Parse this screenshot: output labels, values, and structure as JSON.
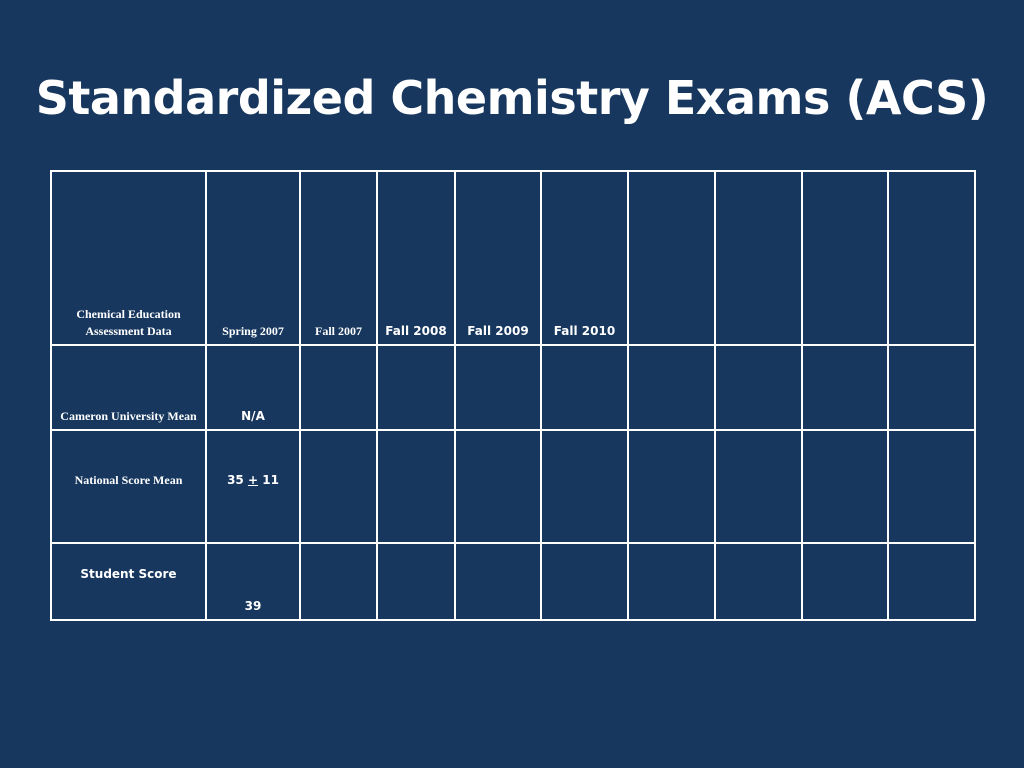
{
  "slide": {
    "title": "Standardized Chemistry Exams (ACS)"
  },
  "table": {
    "header": {
      "label": "Chemical Education Assessment Data",
      "columns": [
        "Spring 2007",
        "Fall 2007",
        "Fall 2008",
        "Fall 2009",
        "Fall 2010",
        "",
        "",
        "",
        ""
      ]
    },
    "rows": [
      {
        "label": "Cameron University Mean",
        "values": [
          "N/A",
          "",
          "",
          "",
          "",
          "",
          "",
          "",
          ""
        ]
      },
      {
        "label": "National Score Mean",
        "values": [
          "35 ± 11",
          "",
          "",
          "",
          "",
          "",
          "",
          "",
          ""
        ],
        "national_mean": "35",
        "pm": "+",
        "sd": "11"
      },
      {
        "label": "Student Score",
        "values": [
          "39",
          "",
          "",
          "",
          "",
          "",
          "",
          "",
          ""
        ]
      }
    ]
  }
}
